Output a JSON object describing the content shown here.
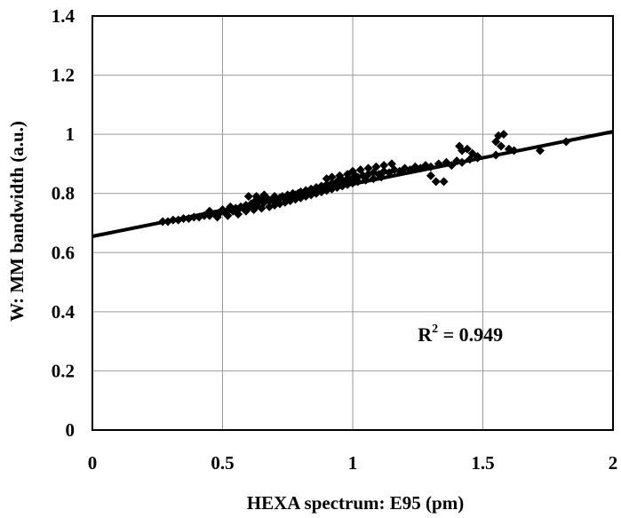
{
  "chart_data": {
    "type": "scatter",
    "xlabel": "HEXA spectrum: E95 (pm)",
    "ylabel": "W: MM bandwidth (a.u.)",
    "xlim": [
      0,
      2
    ],
    "ylim": [
      0,
      1.4
    ],
    "x_ticks": [
      "0",
      "0.5",
      "1",
      "1.5",
      "2"
    ],
    "y_ticks": [
      "0",
      "0.2",
      "0.4",
      "0.6",
      "0.8",
      "1",
      "1.2",
      "1.4"
    ],
    "grid": true,
    "marker": "diamond",
    "colors": {
      "points": "#000000",
      "line": "#000000",
      "grid": "#9a9a9a"
    },
    "annotation": {
      "text": "R",
      "sup": "2",
      "rest": " = 0.949",
      "x": 1.25,
      "y": 0.3
    },
    "trendline": {
      "intercept": 0.655,
      "slope": 0.177
    },
    "points": [
      [
        0.27,
        0.705
      ],
      [
        0.29,
        0.705
      ],
      [
        0.31,
        0.71
      ],
      [
        0.33,
        0.71
      ],
      [
        0.35,
        0.715
      ],
      [
        0.37,
        0.715
      ],
      [
        0.39,
        0.72
      ],
      [
        0.41,
        0.72
      ],
      [
        0.43,
        0.725
      ],
      [
        0.45,
        0.725
      ],
      [
        0.47,
        0.73
      ],
      [
        0.49,
        0.735
      ],
      [
        0.51,
        0.735
      ],
      [
        0.52,
        0.74
      ],
      [
        0.54,
        0.74
      ],
      [
        0.55,
        0.75
      ],
      [
        0.56,
        0.745
      ],
      [
        0.57,
        0.755
      ],
      [
        0.58,
        0.75
      ],
      [
        0.59,
        0.76
      ],
      [
        0.6,
        0.755
      ],
      [
        0.61,
        0.765
      ],
      [
        0.62,
        0.77
      ],
      [
        0.63,
        0.76
      ],
      [
        0.64,
        0.775
      ],
      [
        0.65,
        0.78
      ],
      [
        0.66,
        0.77
      ],
      [
        0.67,
        0.785
      ],
      [
        0.68,
        0.775
      ],
      [
        0.69,
        0.78
      ],
      [
        0.7,
        0.79
      ],
      [
        0.71,
        0.78
      ],
      [
        0.72,
        0.785
      ],
      [
        0.73,
        0.79
      ],
      [
        0.74,
        0.785
      ],
      [
        0.75,
        0.795
      ],
      [
        0.76,
        0.79
      ],
      [
        0.77,
        0.8
      ],
      [
        0.78,
        0.795
      ],
      [
        0.79,
        0.8
      ],
      [
        0.8,
        0.805
      ],
      [
        0.81,
        0.8
      ],
      [
        0.82,
        0.81
      ],
      [
        0.83,
        0.805
      ],
      [
        0.84,
        0.815
      ],
      [
        0.85,
        0.81
      ],
      [
        0.86,
        0.82
      ],
      [
        0.87,
        0.815
      ],
      [
        0.88,
        0.825
      ],
      [
        0.89,
        0.82
      ],
      [
        0.9,
        0.83
      ],
      [
        0.91,
        0.825
      ],
      [
        0.92,
        0.835
      ],
      [
        0.93,
        0.83
      ],
      [
        0.94,
        0.84
      ],
      [
        0.95,
        0.835
      ],
      [
        0.96,
        0.845
      ],
      [
        0.97,
        0.84
      ],
      [
        0.98,
        0.85
      ],
      [
        0.99,
        0.845
      ],
      [
        1.0,
        0.85
      ],
      [
        1.01,
        0.86
      ],
      [
        1.02,
        0.855
      ],
      [
        1.04,
        0.86
      ],
      [
        1.06,
        0.865
      ],
      [
        1.08,
        0.87
      ],
      [
        1.1,
        0.865
      ],
      [
        1.12,
        0.875
      ],
      [
        1.14,
        0.87
      ],
      [
        1.16,
        0.88
      ],
      [
        1.18,
        0.875
      ],
      [
        1.2,
        0.885
      ],
      [
        1.22,
        0.88
      ],
      [
        1.24,
        0.89
      ],
      [
        1.26,
        0.885
      ],
      [
        1.28,
        0.895
      ],
      [
        1.3,
        0.89
      ],
      [
        1.33,
        0.9
      ],
      [
        1.36,
        0.905
      ],
      [
        1.38,
        0.895
      ],
      [
        1.4,
        0.91
      ],
      [
        1.42,
        0.905
      ],
      [
        1.45,
        0.915
      ],
      [
        1.48,
        0.925
      ],
      [
        0.6,
        0.79
      ],
      [
        0.63,
        0.79
      ],
      [
        0.66,
        0.795
      ],
      [
        0.62,
        0.745
      ],
      [
        0.65,
        0.75
      ],
      [
        0.68,
        0.755
      ],
      [
        0.7,
        0.76
      ],
      [
        0.72,
        0.765
      ],
      [
        0.74,
        0.77
      ],
      [
        0.76,
        0.775
      ],
      [
        0.78,
        0.78
      ],
      [
        0.8,
        0.785
      ],
      [
        0.82,
        0.79
      ],
      [
        0.84,
        0.795
      ],
      [
        0.86,
        0.8
      ],
      [
        0.88,
        0.805
      ],
      [
        0.9,
        0.81
      ],
      [
        0.92,
        0.815
      ],
      [
        0.94,
        0.82
      ],
      [
        0.96,
        0.825
      ],
      [
        0.98,
        0.83
      ],
      [
        1.0,
        0.835
      ],
      [
        1.02,
        0.84
      ],
      [
        1.05,
        0.845
      ],
      [
        1.08,
        0.85
      ],
      [
        1.11,
        0.855
      ],
      [
        0.9,
        0.85
      ],
      [
        0.92,
        0.855
      ],
      [
        0.95,
        0.86
      ],
      [
        0.98,
        0.865
      ],
      [
        1.0,
        0.875
      ],
      [
        1.03,
        0.88
      ],
      [
        1.06,
        0.885
      ],
      [
        1.09,
        0.89
      ],
      [
        1.12,
        0.895
      ],
      [
        1.15,
        0.9
      ],
      [
        0.45,
        0.74
      ],
      [
        0.5,
        0.745
      ],
      [
        0.53,
        0.755
      ],
      [
        0.48,
        0.72
      ],
      [
        0.52,
        0.725
      ],
      [
        0.56,
        0.73
      ],
      [
        0.59,
        0.74
      ],
      [
        1.3,
        0.86
      ],
      [
        1.32,
        0.84
      ],
      [
        1.35,
        0.84
      ],
      [
        1.41,
        0.96
      ],
      [
        1.42,
        0.945
      ],
      [
        1.44,
        0.95
      ],
      [
        1.46,
        0.935
      ],
      [
        1.48,
        0.92
      ],
      [
        1.55,
        0.975
      ],
      [
        1.56,
        0.995
      ],
      [
        1.58,
        1.0
      ],
      [
        1.57,
        0.96
      ],
      [
        1.6,
        0.95
      ],
      [
        1.62,
        0.945
      ],
      [
        1.55,
        0.93
      ],
      [
        1.72,
        0.945
      ],
      [
        1.82,
        0.975
      ]
    ]
  }
}
